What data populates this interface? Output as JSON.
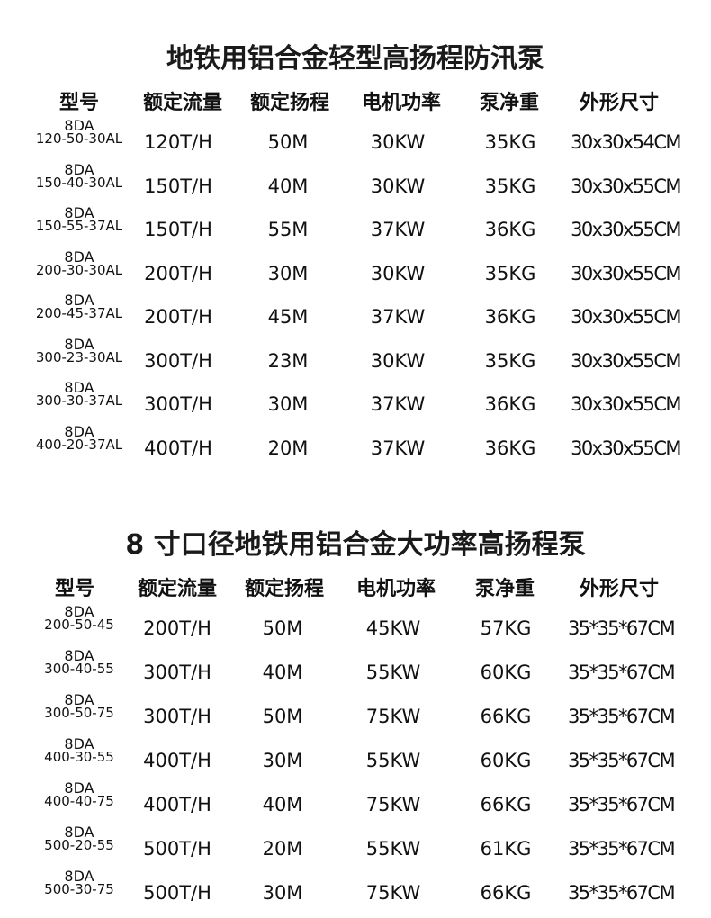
{
  "tables": [
    {
      "title": "地铁用铝合金轻型高扬程防汛泵",
      "headers": [
        "型号",
        "额定流量",
        "额定扬程",
        "电机功率",
        "泵净重",
        "外形尺寸"
      ],
      "rows": [
        {
          "prefix": "8DA",
          "model": "120-50-30AL",
          "flow": "120T/H",
          "head": "50M",
          "power": "30KW",
          "weight": "35KG",
          "size": "30x30x54CM"
        },
        {
          "prefix": "8DA",
          "model": "150-40-30AL",
          "flow": "150T/H",
          "head": "40M",
          "power": "30KW",
          "weight": "35KG",
          "size": "30x30x55CM"
        },
        {
          "prefix": "8DA",
          "model": "150-55-37AL",
          "flow": "150T/H",
          "head": "55M",
          "power": "37KW",
          "weight": "36KG",
          "size": "30x30x55CM"
        },
        {
          "prefix": "8DA",
          "model": "200-30-30AL",
          "flow": "200T/H",
          "head": "30M",
          "power": "30KW",
          "weight": "35KG",
          "size": "30x30x55CM"
        },
        {
          "prefix": "8DA",
          "model": "200-45-37AL",
          "flow": "200T/H",
          "head": "45M",
          "power": "37KW",
          "weight": "36KG",
          "size": "30x30x55CM"
        },
        {
          "prefix": "8DA",
          "model": "300-23-30AL",
          "flow": "300T/H",
          "head": "23M",
          "power": "30KW",
          "weight": "35KG",
          "size": "30x30x55CM"
        },
        {
          "prefix": "8DA",
          "model": "300-30-37AL",
          "flow": "300T/H",
          "head": "30M",
          "power": "37KW",
          "weight": "36KG",
          "size": "30x30x55CM"
        },
        {
          "prefix": "8DA",
          "model": "400-20-37AL",
          "flow": "400T/H",
          "head": "20M",
          "power": "37KW",
          "weight": "36KG",
          "size": "30x30x55CM"
        }
      ]
    },
    {
      "title": "8 寸口径地铁用铝合金大功率高扬程泵",
      "headers": [
        "型号",
        "额定流量",
        "额定扬程",
        "电机功率",
        "泵净重",
        "外形尺寸"
      ],
      "rows": [
        {
          "prefix": "8DA",
          "model": "200-50-45",
          "flow": "200T/H",
          "head": "50M",
          "power": "45KW",
          "weight": "57KG",
          "size": "35*35*67CM"
        },
        {
          "prefix": "8DA",
          "model": "300-40-55",
          "flow": "300T/H",
          "head": "40M",
          "power": "55KW",
          "weight": "60KG",
          "size": "35*35*67CM"
        },
        {
          "prefix": "8DA",
          "model": "300-50-75",
          "flow": "300T/H",
          "head": "50M",
          "power": "75KW",
          "weight": "66KG",
          "size": "35*35*67CM"
        },
        {
          "prefix": "8DA",
          "model": "400-30-55",
          "flow": "400T/H",
          "head": "30M",
          "power": "55KW",
          "weight": "60KG",
          "size": "35*35*67CM"
        },
        {
          "prefix": "8DA",
          "model": "400-40-75",
          "flow": "400T/H",
          "head": "40M",
          "power": "75KW",
          "weight": "66KG",
          "size": "35*35*67CM"
        },
        {
          "prefix": "8DA",
          "model": "500-20-55",
          "flow": "500T/H",
          "head": "20M",
          "power": "55KW",
          "weight": "61KG",
          "size": "35*35*67CM"
        },
        {
          "prefix": "8DA",
          "model": "500-30-75",
          "flow": "500T/H",
          "head": "30M",
          "power": "75KW",
          "weight": "66KG",
          "size": "35*35*67CM"
        }
      ]
    }
  ]
}
